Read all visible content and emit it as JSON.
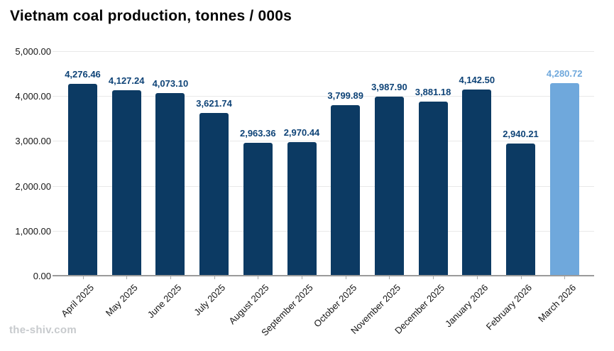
{
  "title": "Vietnam coal production, tonnes / 000s",
  "watermark": "the-shiv.com",
  "chart_data": {
    "type": "bar",
    "title": "Vietnam coal production, tonnes / 000s",
    "categories": [
      "April 2025",
      "May 2025",
      "June 2025",
      "July 2025",
      "August 2025",
      "September 2025",
      "October 2025",
      "November 2025",
      "December 2025",
      "January 2026",
      "February 2026",
      "March 2026"
    ],
    "values": [
      4276.46,
      4127.24,
      4073.1,
      3621.74,
      2963.36,
      2970.44,
      3799.89,
      3987.9,
      3881.18,
      4142.5,
      2940.21,
      4280.72
    ],
    "value_labels": [
      "4,276.46",
      "4,127.24",
      "4,073.10",
      "3,621.74",
      "2,963.36",
      "2,970.44",
      "3,799.89",
      "3,987.90",
      "3,881.18",
      "4,142.50",
      "2,940.21",
      "4,280.72"
    ],
    "ylim": [
      0,
      5000
    ],
    "yticks": [
      0,
      1000,
      2000,
      3000,
      4000,
      5000
    ],
    "ytick_labels": [
      "0.00",
      "1,000.00",
      "2,000.00",
      "3,000.00",
      "4,000.00",
      "5,000.00"
    ],
    "grid": true,
    "legend": "none",
    "highlight_index": 11,
    "colors": {
      "bar": "#0c3a63",
      "highlight_bar": "#6fa8dc",
      "value_label": "#0e4377",
      "highlight_value_label": "#6fa8dc",
      "axis_text": "#161616",
      "gridline": "#e9e9e9",
      "axis_line": "#9b9b9b",
      "watermark": "#c7cacd"
    }
  }
}
